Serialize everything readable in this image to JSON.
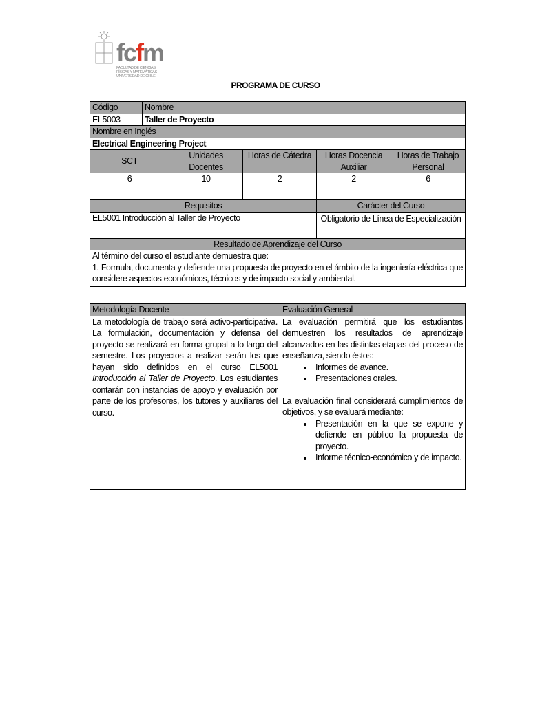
{
  "logo": {
    "text": "fcfm",
    "subtitle_lines": [
      "FACULTAD DE CIENCIAS",
      "FÍSICAS Y MATEMÁTICAS",
      "UNIVERSIDAD DE CHILE"
    ]
  },
  "title": "PROGRAMA DE CURSO",
  "course": {
    "codigo_label": "Código",
    "nombre_label": "Nombre",
    "codigo": "EL5003",
    "nombre": "Taller de Proyecto",
    "nombre_ingles_label": "Nombre en Inglés",
    "nombre_ingles": "Electrical Engineering Project",
    "units_headers": [
      "SCT",
      "Unidades Docentes",
      "Horas de Cátedra",
      "Horas Docencia Auxiliar",
      "Horas de Trabajo Personal"
    ],
    "units_values": [
      "6",
      "10",
      "2",
      "2",
      "6"
    ],
    "requisitos_label": "Requisitos",
    "caracter_label": "Carácter del Curso",
    "requisitos": "EL5001 Introducción al Taller de Proyecto",
    "caracter": "Obligatorio de Línea de Especialización",
    "resultado_label": "Resultado de Aprendizaje del Curso",
    "resultado_intro": "Al término del curso el estudiante demuestra que:",
    "resultado_1": "1. Formula, documenta y defiende una propuesta de proyecto en el ámbito de la ingeniería eléctrica que considere aspectos económicos, técnicos y de impacto social y ambiental."
  },
  "method": {
    "metodologia_label": "Metodología Docente",
    "evaluacion_label": "Evaluación General",
    "metodologia_pre": "La metodología de trabajo será activo-participativa. La formulación, documentación y defensa del proyecto se realizará en forma grupal a lo largo del semestre. Los proyectos a realizar serán los que hayan sido definidos en el curso EL5001 ",
    "metodologia_italic": "Introducción al Taller de Proyecto",
    "metodologia_post": ". Los estudiantes contarán con instancias de apoyo y evaluación por parte de los profesores, los tutores y auxiliares del curso.",
    "evaluacion_intro": "La evaluación permitirá que los estudiantes demuestren los resultados de aprendizaje alcanzados en las distintas etapas del proceso de enseñanza, siendo éstos:",
    "evaluacion_items": [
      "Informes de avance.",
      "Presentaciones orales."
    ],
    "evaluacion_final": "La evaluación final considerará cumplimientos de objetivos, y se evaluará mediante:",
    "evaluacion_final_items": [
      "Presentación en la que se expone y defiende en público la propuesta de proyecto.",
      "Informe técnico-económico y de impacto."
    ]
  }
}
